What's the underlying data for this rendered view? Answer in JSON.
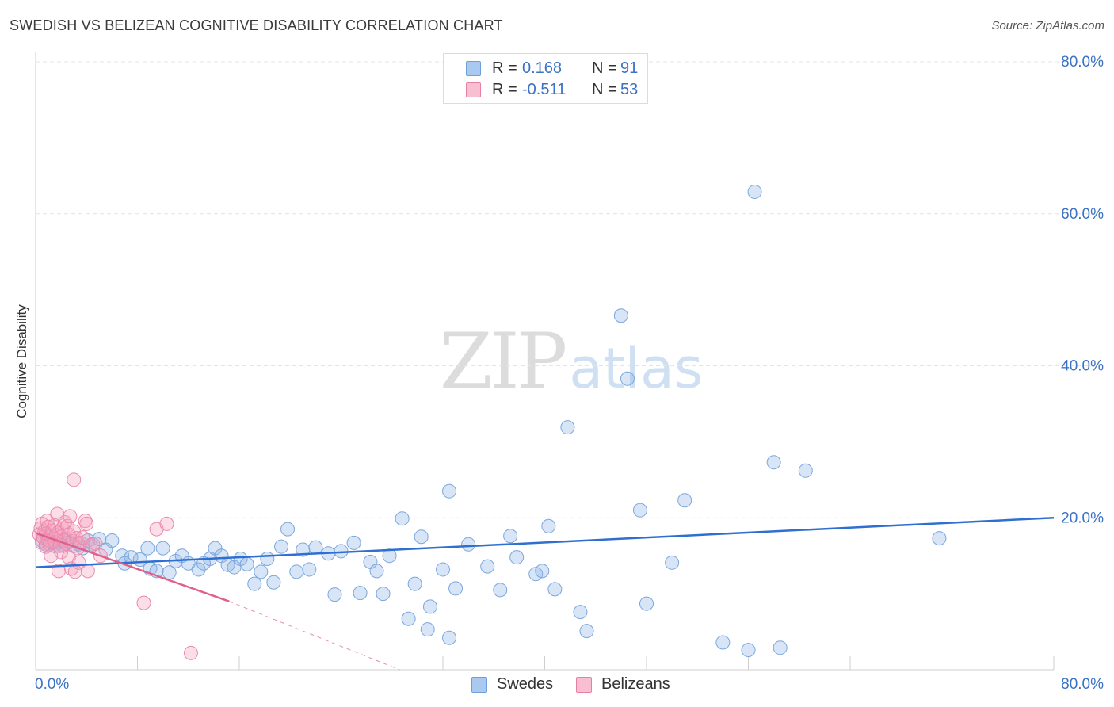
{
  "header": {
    "title": "SWEDISH VS BELIZEAN COGNITIVE DISABILITY CORRELATION CHART",
    "source": "Source: ZipAtlas.com"
  },
  "watermark": {
    "zip": "ZIP",
    "atlas": "atlas"
  },
  "legend": {
    "rows": [
      {
        "r_label": "R =",
        "r_value": "0.168",
        "n_label": "N =",
        "n_value": "91",
        "color": "#a9c9f0",
        "border": "#6f9fd8"
      },
      {
        "r_label": "R =",
        "r_value": "-0.511",
        "n_label": "N =",
        "n_value": "53",
        "color": "#f8bfd2",
        "border": "#e87ea3"
      }
    ]
  },
  "bottom_legend": {
    "items": [
      {
        "label": "Swedes",
        "color": "#a9c9f0",
        "border": "#6f9fd8"
      },
      {
        "label": "Belizeans",
        "color": "#f8bfd2",
        "border": "#e87ea3"
      }
    ]
  },
  "colors": {
    "swedes_fill": "rgba(140,180,232,0.35)",
    "swedes_stroke": "#7ba7dc",
    "swedes_line": "#2f6fcf",
    "belizeans_fill": "rgba(245,160,190,0.35)",
    "belizeans_stroke": "#e98aac",
    "belizeans_line": "#e0608c",
    "axis_text": "#3b72c4"
  },
  "chart_data": {
    "type": "scatter",
    "title": "SWEDISH VS BELIZEAN COGNITIVE DISABILITY CORRELATION CHART",
    "xlabel": "",
    "ylabel": "Cognitive Disability",
    "xlim": [
      0,
      80
    ],
    "ylim": [
      0,
      80
    ],
    "x_tick_labels": [
      "0.0%",
      "80.0%"
    ],
    "y_tick_labels": [
      "20.0%",
      "40.0%",
      "60.0%",
      "80.0%"
    ],
    "y_ticks": [
      20,
      40,
      60,
      80
    ],
    "grid": "horizontal dashed",
    "legend_position": "top-center",
    "series": [
      {
        "name": "Swedes",
        "R": 0.168,
        "N": 91,
        "trend": {
          "x": [
            0,
            80
          ],
          "y": [
            13.5,
            20.0
          ]
        },
        "points": [
          [
            0.5,
            17.0
          ],
          [
            0.8,
            16.5
          ],
          [
            1.0,
            17.5
          ],
          [
            1.2,
            16.8
          ],
          [
            1.5,
            16.3
          ],
          [
            1.8,
            16.8
          ],
          [
            2.0,
            16.5
          ],
          [
            2.3,
            17.2
          ],
          [
            2.6,
            16.8
          ],
          [
            3.0,
            16.3
          ],
          [
            3.4,
            16.5
          ],
          [
            3.7,
            16.0
          ],
          [
            4.1,
            17.0
          ],
          [
            4.5,
            16.5
          ],
          [
            5.0,
            17.2
          ],
          [
            5.5,
            15.8
          ],
          [
            6.0,
            17.0
          ],
          [
            6.8,
            15.0
          ],
          [
            7.0,
            14.0
          ],
          [
            7.5,
            14.8
          ],
          [
            8.2,
            14.5
          ],
          [
            8.8,
            16.0
          ],
          [
            9.0,
            13.3
          ],
          [
            9.5,
            13.0
          ],
          [
            10.0,
            16.0
          ],
          [
            10.5,
            12.8
          ],
          [
            11.0,
            14.3
          ],
          [
            11.5,
            15.0
          ],
          [
            12.0,
            14.0
          ],
          [
            12.8,
            13.2
          ],
          [
            13.2,
            14.0
          ],
          [
            13.7,
            14.6
          ],
          [
            14.1,
            16.0
          ],
          [
            14.6,
            15.0
          ],
          [
            15.1,
            13.8
          ],
          [
            15.6,
            13.5
          ],
          [
            16.1,
            14.6
          ],
          [
            16.6,
            13.9
          ],
          [
            17.2,
            11.3
          ],
          [
            17.7,
            12.9
          ],
          [
            18.2,
            14.6
          ],
          [
            18.7,
            11.5
          ],
          [
            19.3,
            16.2
          ],
          [
            19.8,
            18.5
          ],
          [
            20.5,
            12.9
          ],
          [
            21.0,
            15.8
          ],
          [
            21.5,
            13.2
          ],
          [
            22.0,
            16.1
          ],
          [
            23.0,
            15.3
          ],
          [
            23.5,
            9.9
          ],
          [
            24.0,
            15.6
          ],
          [
            25.0,
            16.7
          ],
          [
            25.5,
            10.1
          ],
          [
            26.3,
            14.2
          ],
          [
            26.8,
            13.0
          ],
          [
            27.3,
            10.0
          ],
          [
            27.8,
            15.0
          ],
          [
            28.8,
            19.9
          ],
          [
            29.3,
            6.7
          ],
          [
            29.8,
            11.3
          ],
          [
            30.3,
            17.5
          ],
          [
            30.8,
            5.3
          ],
          [
            31.0,
            8.3
          ],
          [
            32.0,
            13.2
          ],
          [
            32.5,
            23.5
          ],
          [
            32.5,
            4.2
          ],
          [
            33.0,
            10.7
          ],
          [
            34.0,
            16.5
          ],
          [
            35.5,
            13.6
          ],
          [
            36.5,
            10.5
          ],
          [
            37.3,
            17.6
          ],
          [
            37.8,
            14.8
          ],
          [
            39.3,
            12.6
          ],
          [
            39.8,
            13.0
          ],
          [
            40.3,
            18.9
          ],
          [
            40.8,
            10.6
          ],
          [
            41.8,
            31.9
          ],
          [
            42.8,
            7.6
          ],
          [
            43.3,
            5.1
          ],
          [
            46.0,
            46.6
          ],
          [
            46.5,
            38.3
          ],
          [
            47.5,
            21.0
          ],
          [
            48.0,
            8.7
          ],
          [
            50.0,
            14.1
          ],
          [
            51.0,
            22.3
          ],
          [
            54.0,
            3.6
          ],
          [
            56.0,
            2.6
          ],
          [
            56.5,
            62.9
          ],
          [
            58.0,
            27.3
          ],
          [
            58.5,
            2.9
          ],
          [
            60.5,
            26.2
          ],
          [
            71.0,
            17.3
          ]
        ]
      },
      {
        "name": "Belizeans",
        "R": -0.511,
        "N": 53,
        "trend_solid": {
          "x": [
            0,
            15.2
          ],
          "y": [
            18.0,
            9.0
          ]
        },
        "trend_dashed": {
          "x": [
            15.2,
            28.6
          ],
          "y": [
            9.0,
            0.0
          ]
        },
        "points": [
          [
            0.3,
            17.8
          ],
          [
            0.4,
            18.6
          ],
          [
            0.5,
            16.7
          ],
          [
            0.5,
            19.2
          ],
          [
            0.6,
            17.4
          ],
          [
            0.7,
            18.2
          ],
          [
            0.8,
            16.2
          ],
          [
            0.8,
            17.9
          ],
          [
            0.9,
            19.6
          ],
          [
            1.0,
            17.0
          ],
          [
            1.0,
            18.8
          ],
          [
            1.1,
            16.5
          ],
          [
            1.2,
            17.6
          ],
          [
            1.2,
            15.0
          ],
          [
            1.3,
            18.3
          ],
          [
            1.4,
            17.2
          ],
          [
            1.5,
            19.0
          ],
          [
            1.5,
            16.8
          ],
          [
            1.6,
            17.7
          ],
          [
            1.7,
            20.5
          ],
          [
            1.8,
            18.1
          ],
          [
            1.8,
            13.0
          ],
          [
            1.9,
            16.3
          ],
          [
            2.0,
            17.5
          ],
          [
            2.0,
            15.5
          ],
          [
            2.1,
            18.6
          ],
          [
            2.2,
            17.0
          ],
          [
            2.3,
            19.4
          ],
          [
            2.4,
            16.6
          ],
          [
            2.5,
            18.9
          ],
          [
            2.6,
            14.8
          ],
          [
            2.6,
            17.8
          ],
          [
            2.7,
            20.2
          ],
          [
            2.8,
            13.3
          ],
          [
            2.9,
            16.9
          ],
          [
            3.0,
            18.2
          ],
          [
            3.0,
            25.0
          ],
          [
            3.1,
            12.9
          ],
          [
            3.2,
            17.3
          ],
          [
            3.3,
            16.0
          ],
          [
            3.4,
            14.1
          ],
          [
            3.5,
            16.7
          ],
          [
            3.7,
            17.4
          ],
          [
            3.9,
            19.6
          ],
          [
            4.0,
            19.2
          ],
          [
            4.1,
            13.0
          ],
          [
            4.3,
            16.4
          ],
          [
            4.7,
            16.6
          ],
          [
            5.1,
            15.0
          ],
          [
            8.5,
            8.8
          ],
          [
            9.5,
            18.5
          ],
          [
            10.3,
            19.2
          ],
          [
            12.2,
            2.2
          ]
        ]
      }
    ]
  }
}
